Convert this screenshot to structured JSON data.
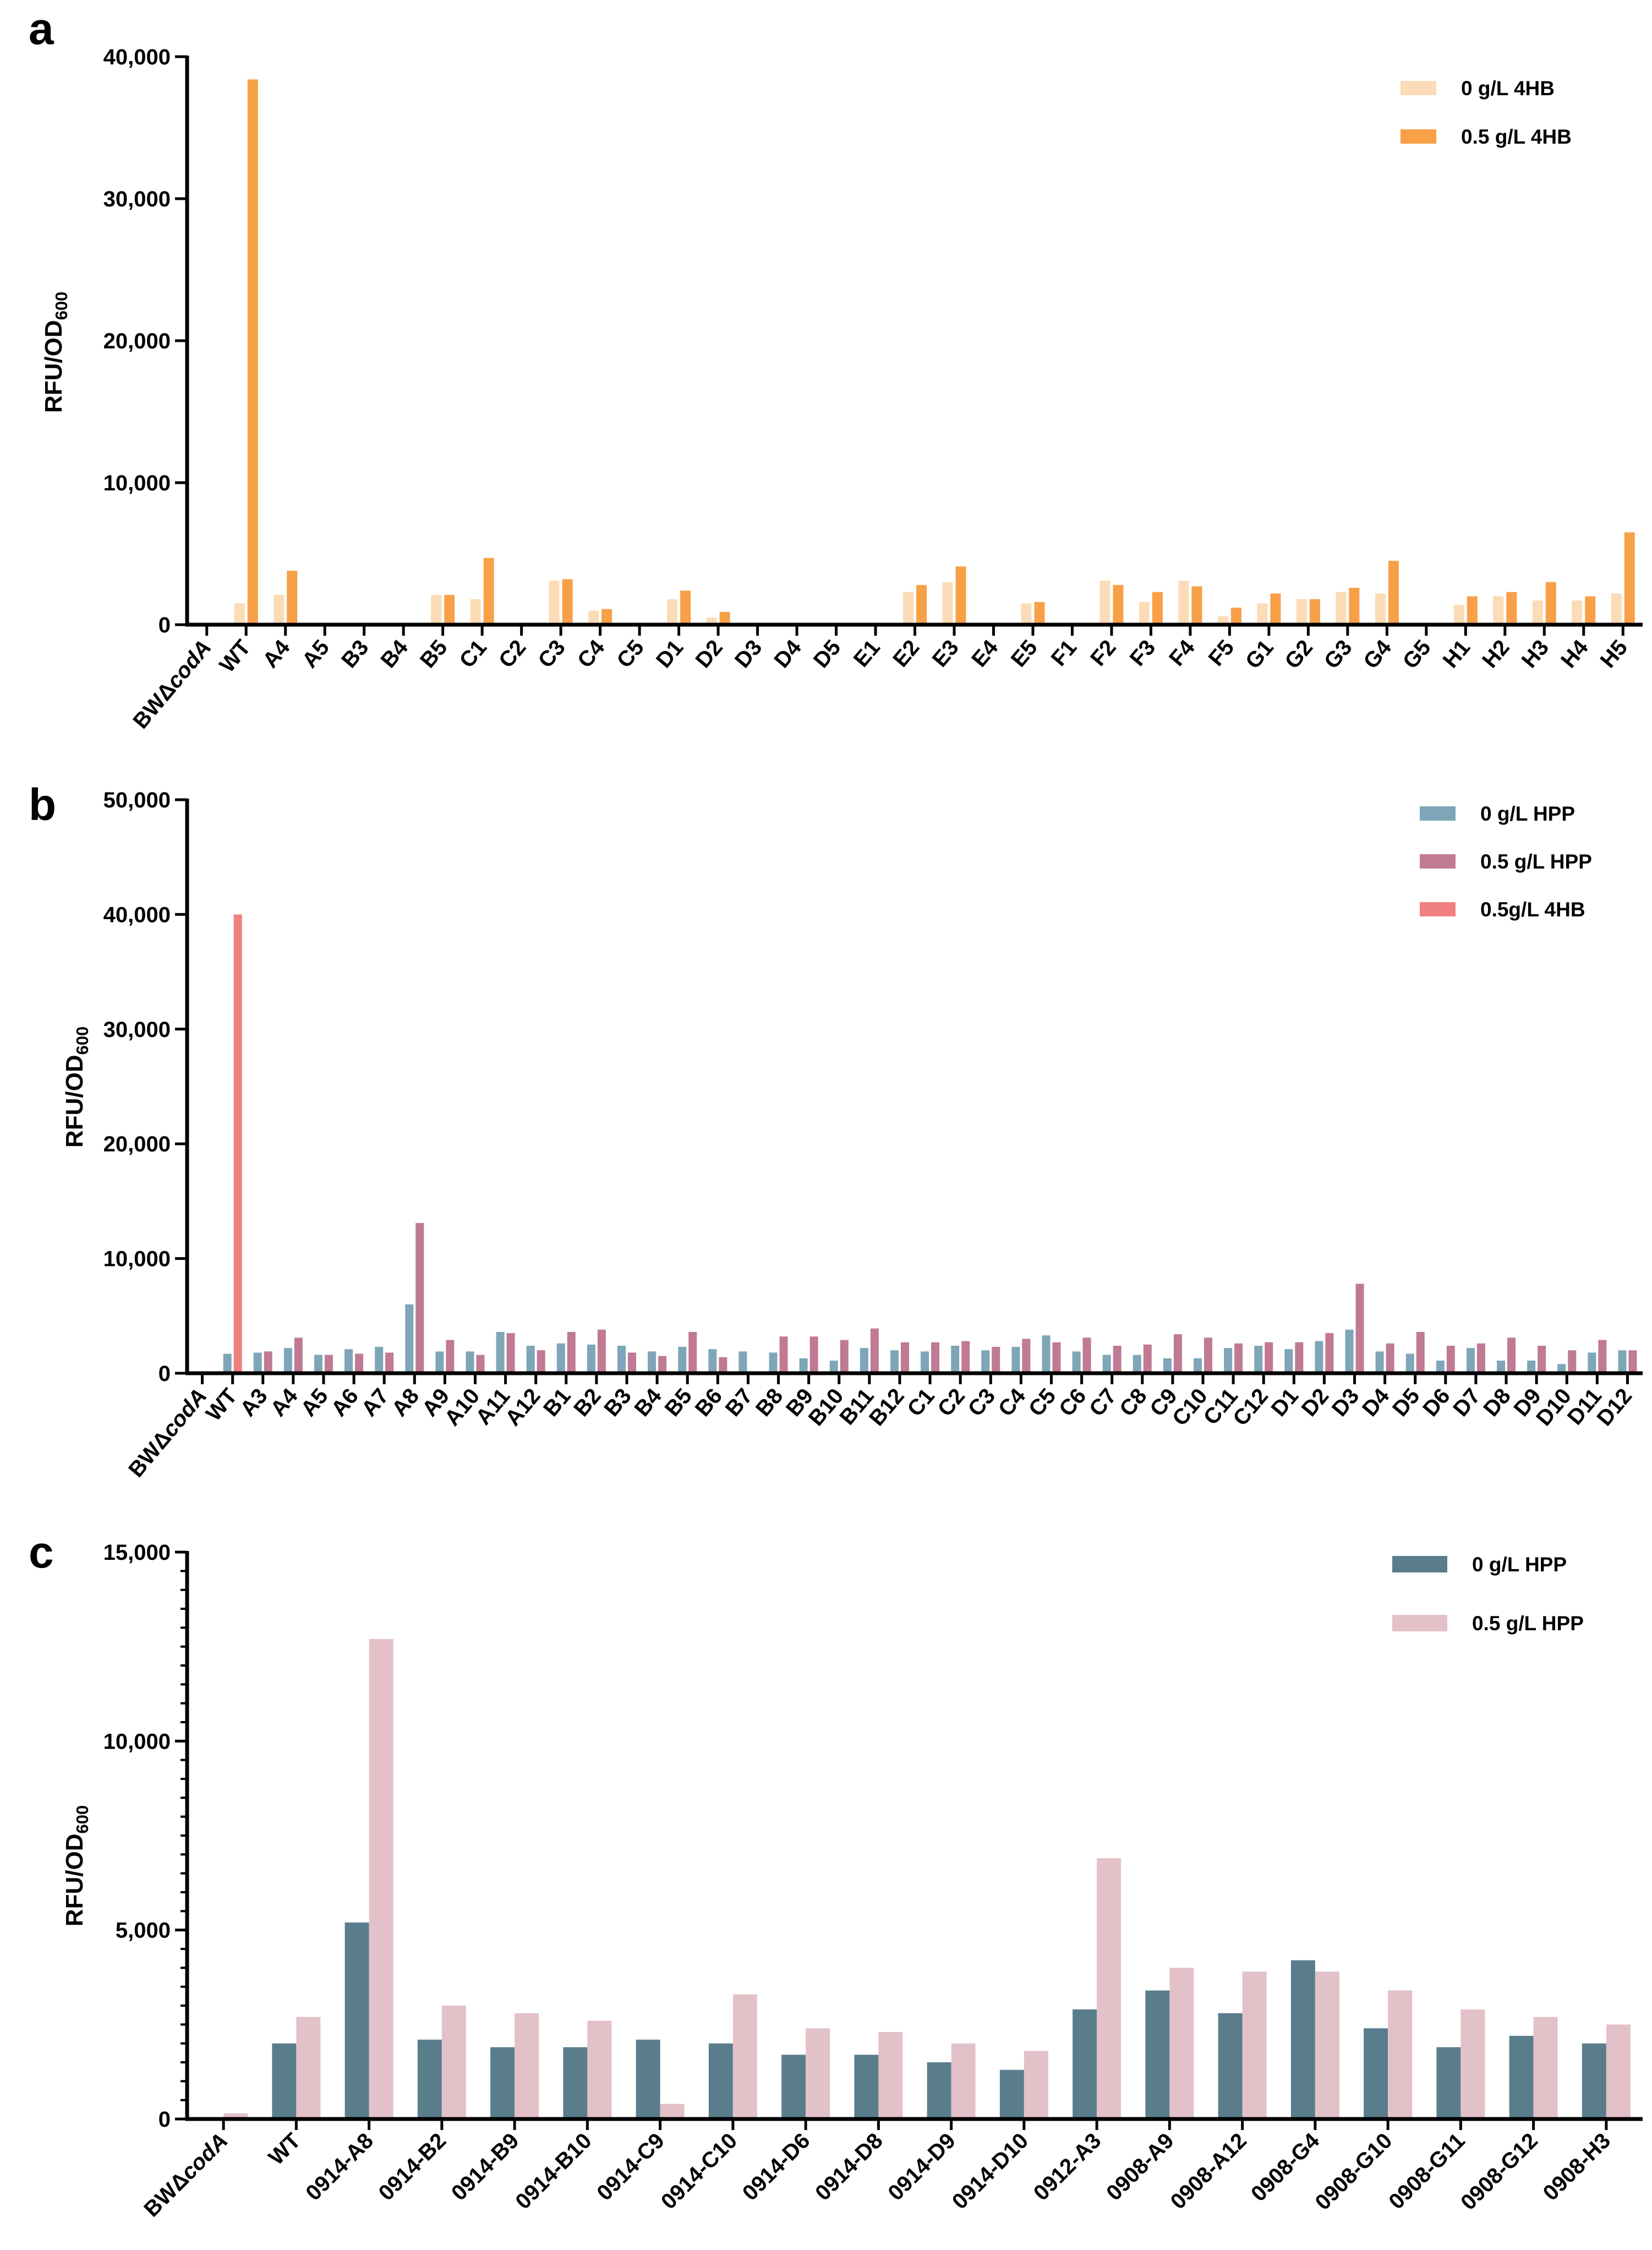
{
  "chart_data": [
    {
      "panel": "a",
      "type": "bar",
      "title": "",
      "xlabel": "",
      "ylabel": "RFU/OD",
      "ylabel_subscript": "600",
      "ylim": [
        0,
        40000
      ],
      "yticks": [
        "0",
        "10,000",
        "20,000",
        "30,000",
        "40,000"
      ],
      "categories": [
        "BWΔcodA",
        "WT",
        "A4",
        "A5",
        "B3",
        "B4",
        "B5",
        "C1",
        "C2",
        "C3",
        "C4",
        "C5",
        "D1",
        "D2",
        "D3",
        "D4",
        "D5",
        "E1",
        "E2",
        "E3",
        "E4",
        "E5",
        "F1",
        "F2",
        "F3",
        "F4",
        "F5",
        "G1",
        "G2",
        "G3",
        "G4",
        "G5",
        "H1",
        "H2",
        "H3",
        "H4",
        "H5"
      ],
      "category_italic": {
        "BWΔcodA": [
          "BWΔ",
          "codA"
        ]
      },
      "series": [
        {
          "name": "0 g/L 4HB",
          "color": "#fbdcb6",
          "values": [
            0,
            1500,
            2100,
            0,
            0,
            0,
            2100,
            1800,
            0,
            3100,
            1000,
            0,
            1800,
            500,
            0,
            0,
            0,
            0,
            2300,
            3000,
            0,
            1500,
            0,
            3100,
            1600,
            3100,
            600,
            1500,
            1800,
            2300,
            2200,
            0,
            1400,
            2000,
            1700,
            1700,
            2200
          ]
        },
        {
          "name": "0.5 g/L 4HB",
          "color": "#f7a048",
          "values": [
            0,
            38400,
            3800,
            0,
            0,
            0,
            2100,
            4700,
            0,
            3200,
            1100,
            0,
            2400,
            900,
            0,
            0,
            0,
            0,
            2800,
            4100,
            0,
            1600,
            0,
            2800,
            2300,
            2700,
            1200,
            2200,
            1800,
            2600,
            4500,
            0,
            2000,
            2300,
            3000,
            2000,
            6500
          ]
        }
      ],
      "legend_position": "top-right"
    },
    {
      "panel": "b",
      "type": "bar",
      "title": "",
      "xlabel": "",
      "ylabel": "RFU/OD",
      "ylabel_subscript": "600",
      "ylim": [
        0,
        50000
      ],
      "yticks": [
        "0",
        "10,000",
        "20,000",
        "30,000",
        "40,000",
        "50,000"
      ],
      "categories": [
        "BWΔcodA",
        "WT",
        "A3",
        "A4",
        "A5",
        "A6",
        "A7",
        "A8",
        "A9",
        "A10",
        "A11",
        "A12",
        "B1",
        "B2",
        "B3",
        "B4",
        "B5",
        "B6",
        "B7",
        "B8",
        "B9",
        "B10",
        "B11",
        "B12",
        "C1",
        "C2",
        "C3",
        "C4",
        "C5",
        "C6",
        "C7",
        "C8",
        "C9",
        "C10",
        "C11",
        "C12",
        "D1",
        "D2",
        "D3",
        "D4",
        "D5",
        "D6",
        "D7",
        "D8",
        "D9",
        "D10",
        "D11",
        "D12"
      ],
      "category_italic": {
        "BWΔcodA": [
          "BWΔ",
          "codA"
        ]
      },
      "series": [
        {
          "name": "0 g/L HPP",
          "color": "#7ea6b8",
          "values": [
            0,
            1700,
            1800,
            2200,
            1600,
            2100,
            2300,
            6000,
            1900,
            1900,
            3600,
            2400,
            2600,
            2500,
            2400,
            1900,
            2300,
            2100,
            1900,
            1800,
            1300,
            1100,
            2200,
            2000,
            1900,
            2400,
            2000,
            2300,
            3300,
            1900,
            1600,
            1600,
            1300,
            1300,
            2200,
            2400,
            2100,
            2800,
            3800,
            1900,
            1700,
            1100,
            2200,
            1100,
            1100,
            800,
            1800,
            2000
          ]
        },
        {
          "name": "0.5 g/L HPP",
          "color": "#c07a93",
          "values": [
            0,
            0,
            1900,
            3100,
            1600,
            1700,
            1800,
            13100,
            2900,
            1600,
            3500,
            2000,
            3600,
            3800,
            1800,
            1500,
            3600,
            1400,
            0,
            3200,
            3200,
            2900,
            3900,
            2700,
            2700,
            2800,
            2300,
            3000,
            2700,
            3100,
            2400,
            2500,
            3400,
            3100,
            2600,
            2700,
            2700,
            3500,
            7800,
            2600,
            3600,
            2400,
            2600,
            3100,
            2400,
            2000,
            2900,
            2000
          ]
        },
        {
          "name": "0.5g/L 4HB",
          "color": "#f08080",
          "values": [
            0,
            40000,
            0,
            0,
            0,
            0,
            0,
            0,
            0,
            0,
            0,
            0,
            0,
            0,
            0,
            0,
            0,
            0,
            0,
            0,
            0,
            0,
            0,
            0,
            0,
            0,
            0,
            0,
            0,
            0,
            0,
            0,
            0,
            0,
            0,
            0,
            0,
            0,
            0,
            0,
            0,
            0,
            0,
            0,
            0,
            0,
            0,
            0
          ]
        }
      ],
      "legend_position": "top-right"
    },
    {
      "panel": "c",
      "type": "bar",
      "title": "",
      "xlabel": "",
      "ylabel": "RFU/OD",
      "ylabel_subscript": "600",
      "ylim": [
        0,
        15000
      ],
      "yticks": [
        "0",
        "5,000",
        "10,000",
        "15,000"
      ],
      "categories": [
        "BWΔcodA",
        "WT",
        "0914-A8",
        "0914-B2",
        "0914-B9",
        "0914-B10",
        "0914-C9",
        "0914-C10",
        "0914-D6",
        "0914-D8",
        "0914-D9",
        "0914-D10",
        "0912-A3",
        "0908-A9",
        "0908-A12",
        "0908-G4",
        "0908-G10",
        "0908-G11",
        "0908-G12",
        "0908-H3"
      ],
      "category_italic": {
        "BWΔcodA": [
          "BWΔ",
          "codA"
        ]
      },
      "series": [
        {
          "name": "0 g/L HPP",
          "color": "#5a7d8c",
          "values": [
            0,
            2000,
            5200,
            2100,
            1900,
            1900,
            2100,
            2000,
            1700,
            1700,
            1500,
            1300,
            2900,
            3400,
            2800,
            4200,
            2400,
            1900,
            2200,
            2000
          ]
        },
        {
          "name": "0.5 g/L HPP",
          "color": "#e3c1c8",
          "values": [
            150,
            2700,
            12700,
            3000,
            2800,
            2600,
            400,
            3300,
            2400,
            2300,
            2000,
            1800,
            6900,
            4000,
            3900,
            3900,
            3400,
            2900,
            2700,
            2500
          ]
        }
      ],
      "legend_position": "top-right"
    }
  ]
}
